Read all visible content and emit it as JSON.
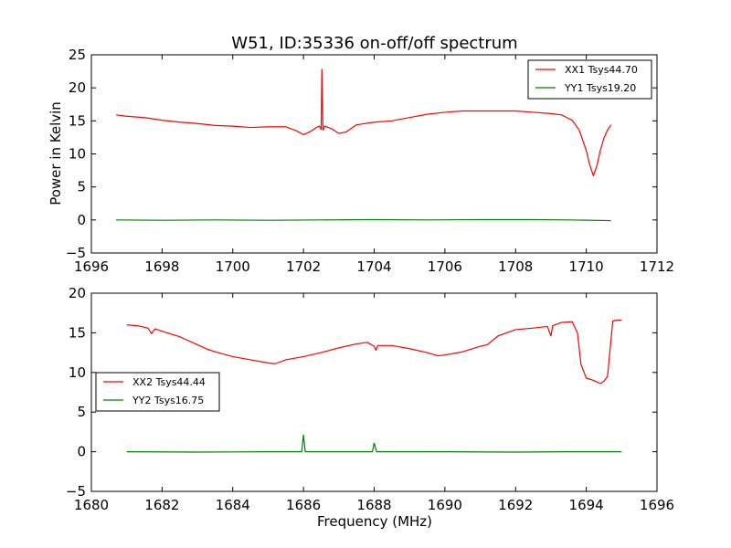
{
  "chart_data": [
    {
      "type": "line",
      "title": "W51, ID:35336 on-off/off spectrum",
      "xlabel": "",
      "ylabel": "Power in Kelvin",
      "xlim": [
        1696,
        1712
      ],
      "ylim": [
        -5,
        25
      ],
      "xticks": [
        1696,
        1698,
        1700,
        1702,
        1704,
        1706,
        1708,
        1710,
        1712
      ],
      "yticks": [
        -5,
        0,
        5,
        10,
        15,
        20,
        25
      ],
      "legend_loc": "upper right",
      "grid": false,
      "series": [
        {
          "name": "XX1 Tsys44.70",
          "color": "#ff0000",
          "points": [
            [
              1696.7,
              15.9
            ],
            [
              1697.0,
              15.7
            ],
            [
              1697.5,
              15.5
            ],
            [
              1698.0,
              15.1
            ],
            [
              1698.5,
              14.8
            ],
            [
              1699.0,
              14.6
            ],
            [
              1699.5,
              14.3
            ],
            [
              1700.0,
              14.2
            ],
            [
              1700.5,
              14.0
            ],
            [
              1701.0,
              14.1
            ],
            [
              1701.5,
              14.1
            ],
            [
              1701.8,
              13.5
            ],
            [
              1702.0,
              12.9
            ],
            [
              1702.2,
              13.4
            ],
            [
              1702.4,
              14.1
            ],
            [
              1702.45,
              14.2
            ],
            [
              1702.5,
              13.7
            ],
            [
              1702.52,
              22.8
            ],
            [
              1702.55,
              13.6
            ],
            [
              1702.6,
              14.2
            ],
            [
              1702.8,
              13.8
            ],
            [
              1703.0,
              13.1
            ],
            [
              1703.2,
              13.3
            ],
            [
              1703.5,
              14.4
            ],
            [
              1704.0,
              14.8
            ],
            [
              1704.5,
              15.0
            ],
            [
              1705.0,
              15.5
            ],
            [
              1705.5,
              16.0
            ],
            [
              1706.0,
              16.3
            ],
            [
              1706.5,
              16.5
            ],
            [
              1707.0,
              16.5
            ],
            [
              1707.5,
              16.5
            ],
            [
              1708.0,
              16.5
            ],
            [
              1708.5,
              16.3
            ],
            [
              1709.0,
              16.1
            ],
            [
              1709.3,
              15.9
            ],
            [
              1709.6,
              15.1
            ],
            [
              1709.8,
              13.6
            ],
            [
              1710.0,
              10.5
            ],
            [
              1710.1,
              8.3
            ],
            [
              1710.2,
              6.7
            ],
            [
              1710.3,
              8.2
            ],
            [
              1710.4,
              10.6
            ],
            [
              1710.5,
              12.4
            ],
            [
              1710.6,
              13.6
            ],
            [
              1710.7,
              14.4
            ]
          ]
        },
        {
          "name": "YY1 Tsys19.20",
          "color": "#008000",
          "points": [
            [
              1696.7,
              0.0
            ],
            [
              1698.0,
              -0.05
            ],
            [
              1699.5,
              0.0
            ],
            [
              1701.0,
              -0.05
            ],
            [
              1702.5,
              0.0
            ],
            [
              1704.0,
              0.05
            ],
            [
              1705.5,
              0.0
            ],
            [
              1707.0,
              0.05
            ],
            [
              1708.5,
              0.05
            ],
            [
              1709.5,
              0.0
            ],
            [
              1710.7,
              -0.1
            ]
          ]
        }
      ]
    },
    {
      "type": "line",
      "title": "",
      "xlabel": "Frequency (MHz)",
      "ylabel": "",
      "xlim": [
        1680,
        1696
      ],
      "ylim": [
        -5,
        20
      ],
      "xticks": [
        1680,
        1682,
        1684,
        1686,
        1688,
        1690,
        1692,
        1694,
        1696
      ],
      "yticks": [
        -5,
        0,
        5,
        10,
        15,
        20
      ],
      "legend_loc": "center left",
      "grid": false,
      "series": [
        {
          "name": "XX2 Tsys44.44",
          "color": "#ff0000",
          "points": [
            [
              1681.0,
              16.0
            ],
            [
              1681.3,
              15.9
            ],
            [
              1681.6,
              15.6
            ],
            [
              1681.7,
              14.9
            ],
            [
              1681.8,
              15.5
            ],
            [
              1682.0,
              15.2
            ],
            [
              1682.5,
              14.5
            ],
            [
              1683.0,
              13.5
            ],
            [
              1683.3,
              12.9
            ],
            [
              1683.5,
              12.6
            ],
            [
              1684.0,
              12.0
            ],
            [
              1684.5,
              11.6
            ],
            [
              1685.0,
              11.2
            ],
            [
              1685.2,
              11.1
            ],
            [
              1685.5,
              11.6
            ],
            [
              1686.0,
              12.0
            ],
            [
              1686.5,
              12.5
            ],
            [
              1687.0,
              13.1
            ],
            [
              1687.5,
              13.6
            ],
            [
              1687.8,
              13.8
            ],
            [
              1688.0,
              13.3
            ],
            [
              1688.05,
              12.8
            ],
            [
              1688.1,
              13.4
            ],
            [
              1688.5,
              13.4
            ],
            [
              1689.0,
              13.0
            ],
            [
              1689.5,
              12.5
            ],
            [
              1689.8,
              12.1
            ],
            [
              1690.0,
              12.2
            ],
            [
              1690.5,
              12.6
            ],
            [
              1691.0,
              13.3
            ],
            [
              1691.2,
              13.5
            ],
            [
              1691.5,
              14.6
            ],
            [
              1692.0,
              15.4
            ],
            [
              1692.5,
              15.6
            ],
            [
              1692.9,
              15.8
            ],
            [
              1693.0,
              14.6
            ],
            [
              1693.05,
              15.9
            ],
            [
              1693.3,
              16.3
            ],
            [
              1693.6,
              16.4
            ],
            [
              1693.75,
              15.0
            ],
            [
              1693.85,
              11.0
            ],
            [
              1694.0,
              9.3
            ],
            [
              1694.2,
              9.0
            ],
            [
              1694.4,
              8.6
            ],
            [
              1694.5,
              8.9
            ],
            [
              1694.6,
              9.5
            ],
            [
              1694.7,
              14.2
            ],
            [
              1694.75,
              16.5
            ],
            [
              1694.9,
              16.6
            ],
            [
              1695.0,
              16.6
            ]
          ]
        },
        {
          "name": "YY2 Tsys16.75",
          "color": "#008000",
          "points": [
            [
              1681.0,
              0.0
            ],
            [
              1683.0,
              -0.05
            ],
            [
              1685.0,
              0.0
            ],
            [
              1685.95,
              0.0
            ],
            [
              1686.0,
              2.1
            ],
            [
              1686.05,
              0.0
            ],
            [
              1687.0,
              0.0
            ],
            [
              1687.95,
              0.0
            ],
            [
              1688.0,
              1.1
            ],
            [
              1688.07,
              0.0
            ],
            [
              1690.0,
              0.0
            ],
            [
              1692.0,
              -0.05
            ],
            [
              1693.5,
              0.0
            ],
            [
              1695.0,
              0.0
            ]
          ]
        }
      ]
    }
  ]
}
